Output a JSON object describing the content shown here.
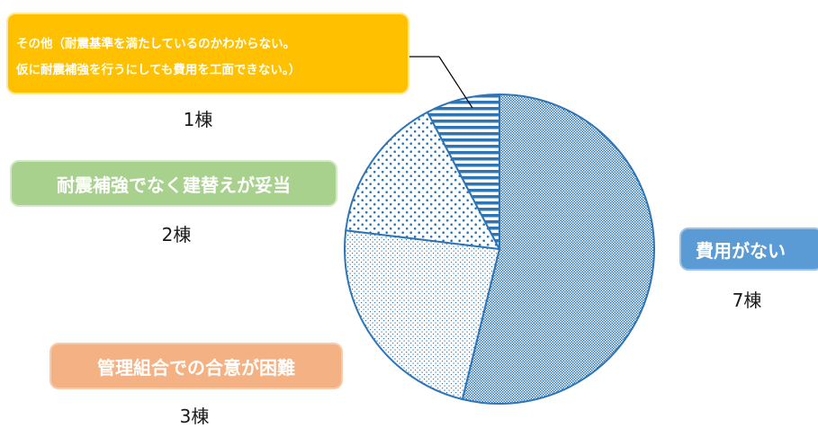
{
  "chart_data": {
    "type": "pie",
    "start_angle_deg": 0,
    "direction": "clockwise",
    "categories": [
      "費用がない",
      "管理組合での合意が困難",
      "耐震補強でなく建替えが妥当",
      "その他（耐震基準を満たしているのかわからない。仮に耐震補強を行うにしても費用を工面できない。）"
    ],
    "values": [
      7,
      3,
      2,
      1
    ],
    "value_labels": [
      "7棟",
      "3棟",
      "2棟",
      "1棟"
    ],
    "slice_patterns": [
      "fine-dots",
      "sparse-dots",
      "large-dots",
      "horizontal-stripes"
    ],
    "colors": {
      "outline": "#2e75b6",
      "fill": "#2e75b6",
      "leader_line": "#000000"
    }
  },
  "labels": {
    "cost": "費用がない",
    "consensus": "管理組合での合意が困難",
    "rebuild": "耐震補強でなく建替えが妥当",
    "other_line1": "その他（耐震基準を満たしているのかわからない。",
    "other_line2": "仮に耐震補強を行うにしても費用を工面できない。）"
  },
  "box_colors": {
    "cost": "#5b9bd5",
    "consensus": "#f4b183",
    "rebuild": "#a9d18e",
    "other": "#ffc000"
  }
}
